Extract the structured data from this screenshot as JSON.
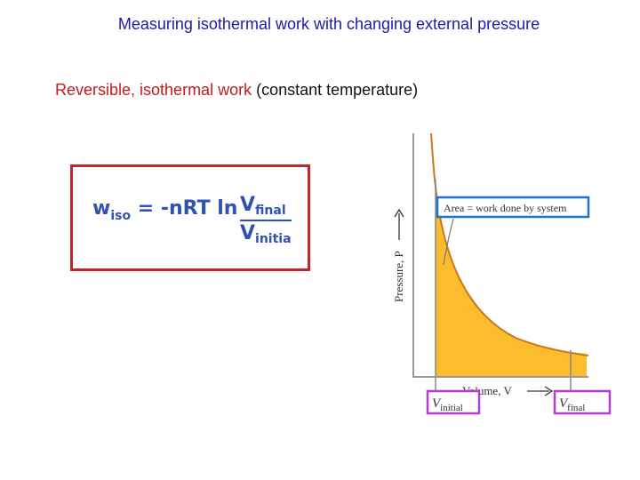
{
  "slide": {
    "title": "Measuring isothermal work with changing external pressure",
    "subtitle_red": "Reversible, isothermal work",
    "subtitle_rest": " (constant temperature)"
  },
  "formula": {
    "w": "w",
    "w_sub": "iso",
    "equals": " = ",
    "rhs": "-nRT ln",
    "num": "V",
    "num_sub": "final",
    "den": "V",
    "den_sub": "initial"
  },
  "graph": {
    "area_label": "Area = work done by system",
    "y_axis_label": "Pressure, P",
    "x_axis_label": "Volume, V",
    "v_initial": "V",
    "v_initial_sub": "initial",
    "v_final": "V",
    "v_final_sub": "final",
    "colors": {
      "area_fill": "#fbbd2e",
      "curve": "#c9781a",
      "area_label_border": "#1b74d0",
      "volume_label_border": "#b63ad6",
      "formula_border": "#c0262b",
      "formula_text": "#2f52b3"
    }
  }
}
